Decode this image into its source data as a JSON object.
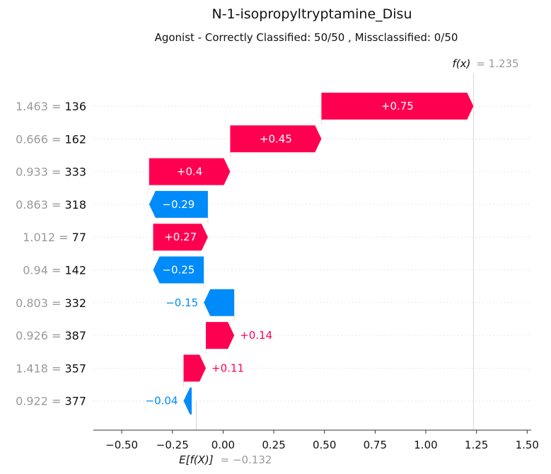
{
  "chart_data": {
    "type": "waterfall",
    "title": "N-1-isopropyltryptamine_Disu",
    "subtitle": "Agonist - Correctly Classified: 50/50 , Missclassified: 0/50",
    "fx_label": "f(x)",
    "fx_value_text": "= 1.235",
    "fx_value": 1.235,
    "base_label": "E[f(X)]",
    "base_value_text": "= −0.132",
    "base_value": -0.132,
    "xlim": [
      -0.64,
      1.52
    ],
    "xticks": [
      -0.5,
      -0.25,
      0.0,
      0.25,
      0.5,
      0.75,
      1.0,
      1.25,
      1.5
    ],
    "xtick_labels": [
      "−0.50",
      "−0.25",
      "0.00",
      "0.25",
      "0.50",
      "0.75",
      "1.00",
      "1.25",
      "1.50"
    ],
    "colors": {
      "positive": "#ff0051",
      "negative": "#008bfb"
    },
    "rows": [
      {
        "value_text": "1.463 =",
        "feature": "136",
        "contribution": 0.75,
        "label": "+0.75"
      },
      {
        "value_text": "0.666 =",
        "feature": "162",
        "contribution": 0.45,
        "label": "+0.45"
      },
      {
        "value_text": "0.933 =",
        "feature": "333",
        "contribution": 0.4,
        "label": "+0.4"
      },
      {
        "value_text": "0.863 =",
        "feature": "318",
        "contribution": -0.29,
        "label": "−0.29"
      },
      {
        "value_text": "1.012 =",
        "feature": "77",
        "contribution": 0.27,
        "label": "+0.27"
      },
      {
        "value_text": "0.94 =",
        "feature": "142",
        "contribution": -0.25,
        "label": "−0.25"
      },
      {
        "value_text": "0.803 =",
        "feature": "332",
        "contribution": -0.15,
        "label": "−0.15"
      },
      {
        "value_text": "0.926 =",
        "feature": "387",
        "contribution": 0.14,
        "label": "+0.14"
      },
      {
        "value_text": "1.418 =",
        "feature": "357",
        "contribution": 0.11,
        "label": "+0.11"
      },
      {
        "value_text": "0.922 =",
        "feature": "377",
        "contribution": -0.04,
        "label": "−0.04"
      }
    ]
  }
}
